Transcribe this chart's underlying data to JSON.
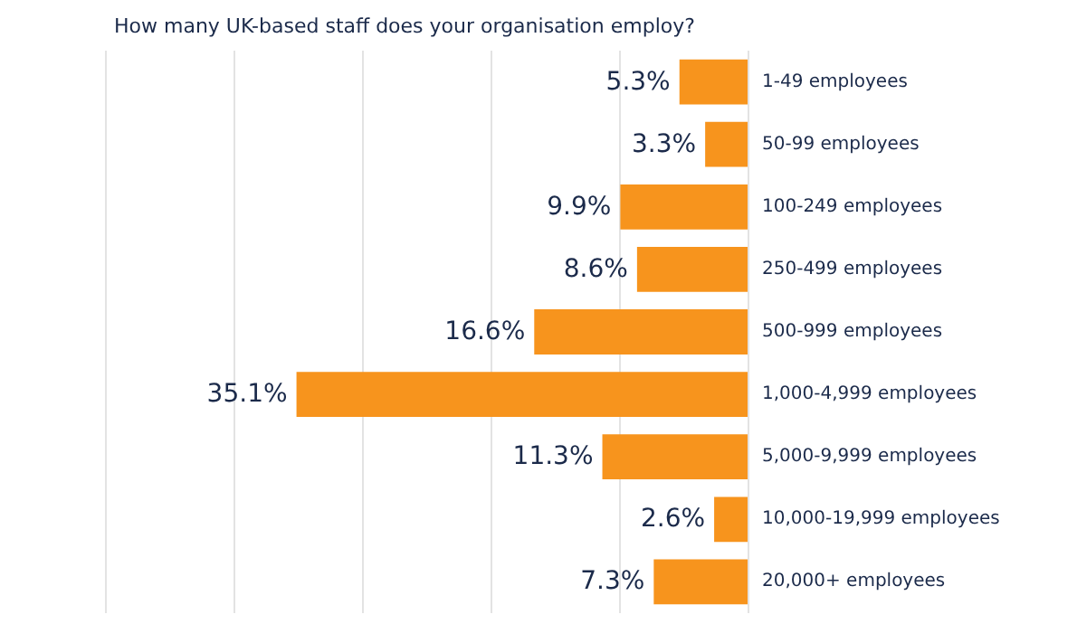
{
  "chart_data": {
    "type": "bar",
    "orientation": "horizontal",
    "title": "How many UK-based staff does your organisation employ?",
    "categories": [
      "1-49 employees",
      "50-99 employees",
      "100-249 employees",
      "250-499 employees",
      "500-999 employees",
      "1,000-4,999 employees",
      "5,000-9,999 employees",
      "10,000-19,999 employees",
      "20,000+ employees"
    ],
    "values": [
      5.3,
      3.3,
      9.9,
      8.6,
      16.6,
      35.1,
      11.3,
      2.6,
      7.3
    ],
    "value_labels": [
      "5.3%",
      "3.3%",
      "9.9%",
      "8.6%",
      "16.6%",
      "35.1%",
      "11.3%",
      "2.6%",
      "7.3%"
    ],
    "color": "#f7941d",
    "xlim": [
      50,
      0
    ],
    "xticks": [
      0,
      10,
      20,
      30,
      40,
      50
    ],
    "tick_labels": false,
    "grid": "x"
  }
}
